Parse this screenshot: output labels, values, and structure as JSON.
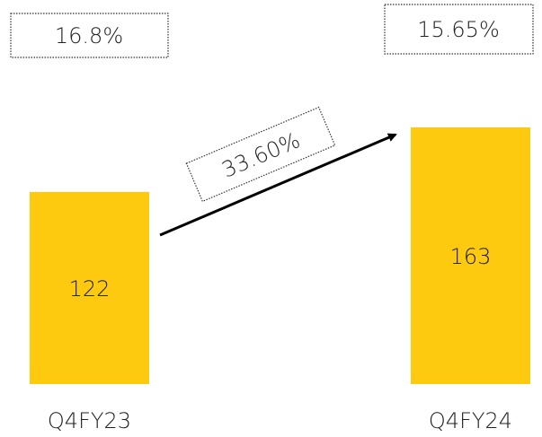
{
  "chart_data": {
    "type": "bar",
    "categories": [
      "Q4FY23",
      "Q4FY24"
    ],
    "values": [
      122,
      163
    ],
    "color": "#fdca0f",
    "ylim": [
      0,
      200
    ],
    "margins": [
      "16.8%",
      "15.65%"
    ],
    "growth": "33.60%"
  }
}
